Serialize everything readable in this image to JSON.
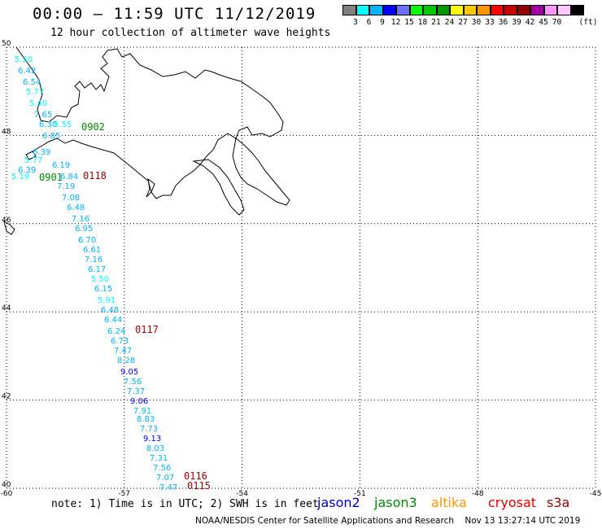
{
  "title": "00:00 – 11:59 UTC 11/12/2019",
  "subtitle": "12 hour collection of altimeter wave heights",
  "colorbar": {
    "labels": [
      "3",
      "6",
      "9",
      "12",
      "15",
      "18",
      "21",
      "24",
      "27",
      "30",
      "33",
      "36",
      "39",
      "42",
      "45",
      "70"
    ],
    "unit": "(ft)",
    "colors": [
      "#808080",
      "#00ffff",
      "#00b4ff",
      "#0000ff",
      "#6e6eff",
      "#00ff00",
      "#00c800",
      "#009600",
      "#ffff00",
      "#ffc800",
      "#ff9600",
      "#ff0000",
      "#c80000",
      "#960000",
      "#a000a0",
      "#ff96ff",
      "#ffc8ff",
      "#000000"
    ]
  },
  "axes": {
    "lon_labels": [
      "-60",
      "-57",
      "-54",
      "-51",
      "-48",
      "-45"
    ],
    "lat_labels": [
      "50",
      "48",
      "46",
      "44",
      "42",
      "40"
    ],
    "lon_range": [
      -60,
      -45
    ],
    "lat_range": [
      40,
      50
    ],
    "grid": "dotted"
  },
  "passes": [
    "0902",
    "0901",
    "0118",
    "0117",
    "0116",
    "0115"
  ],
  "wave_heights": [
    "5.20",
    "6.42",
    "6.54",
    "5.77",
    "5.40",
    "7.65",
    "6.30",
    "5.55",
    "6.85",
    "6.39",
    "5.77",
    "6.19",
    "6.39",
    "5.19",
    "6.84",
    "7.19",
    "7.08",
    "6.48",
    "7.16",
    "6.95",
    "6.70",
    "6.61",
    "7.16",
    "6.17",
    "5.50",
    "6.15",
    "5.91",
    "6.48",
    "6.44",
    "6.24",
    "6.73",
    "7.47",
    "8.28",
    "9.05",
    "7.56",
    "7.37",
    "9.06",
    "7.91",
    "8.83",
    "7.73",
    "9.13",
    "8.03",
    "7.31",
    "7.56",
    "7.07",
    "7.47"
  ],
  "footer": {
    "note": "note: 1) Time is in UTC; 2) SWH is in feet",
    "satellites": [
      {
        "name": "jason2",
        "color": "#0000c8"
      },
      {
        "name": "jason3",
        "color": "#008c00"
      },
      {
        "name": "altika",
        "color": "#ff9600"
      },
      {
        "name": "cryosat",
        "color": "#dc0000"
      },
      {
        "name": "s3a",
        "color": "#960000"
      }
    ],
    "credit": "NOAA/NESDIS Center for Satellite Applications and Research    Nov 13 13:27:14 UTC 2019"
  }
}
